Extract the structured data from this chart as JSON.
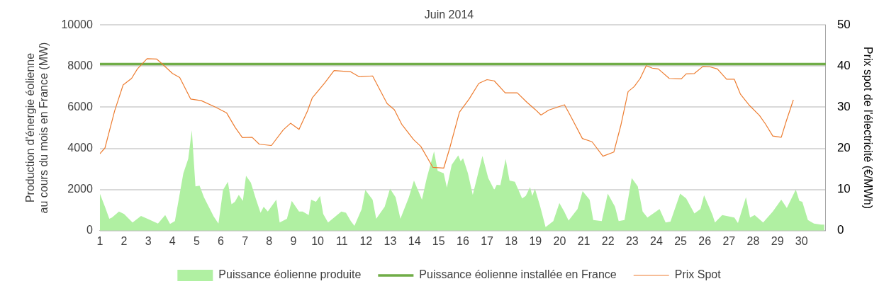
{
  "chart_data": {
    "type": "line",
    "title": "Juin 2014",
    "ylabel": "Production d'énergie éolienne au cours du mois en France (MW)",
    "y2label": "Prix spot de l'électricité (€/MWh)",
    "xlim": [
      1,
      31
    ],
    "xticks": [
      1,
      2,
      3,
      4,
      5,
      6,
      7,
      8,
      9,
      10,
      11,
      12,
      13,
      14,
      15,
      16,
      17,
      18,
      19,
      20,
      21,
      22,
      23,
      24,
      25,
      26,
      27,
      28,
      29,
      30
    ],
    "ylim": [
      0,
      10000
    ],
    "yticks": [
      0,
      2000,
      4000,
      6000,
      8000,
      10000
    ],
    "y2lim": [
      0,
      50
    ],
    "y2ticks": [
      0,
      10,
      20,
      30,
      40,
      50
    ],
    "grid": "y",
    "legend": "bottom",
    "marker": "none",
    "line_style": "solid",
    "series": [
      {
        "name": "Puissance éolienne produite",
        "type": "area",
        "color": "#b0f0a2",
        "x": [
          1.0,
          1.21,
          1.39,
          1.5,
          1.79,
          2.0,
          2.35,
          2.7,
          3.0,
          3.4,
          3.7,
          3.9,
          4.1,
          4.45,
          4.65,
          4.8,
          4.95,
          5.12,
          5.3,
          5.5,
          5.7,
          5.9,
          6.09,
          6.29,
          6.44,
          6.58,
          6.74,
          6.91,
          7.04,
          7.24,
          7.44,
          7.64,
          7.77,
          7.94,
          8.29,
          8.43,
          8.73,
          8.93,
          9.23,
          9.38,
          9.63,
          9.73,
          9.93,
          10.1,
          10.23,
          10.43,
          10.98,
          11.17,
          11.37,
          11.52,
          11.82,
          11.97,
          12.27,
          12.42,
          12.77,
          12.99,
          13.22,
          13.42,
          13.77,
          13.98,
          14.31,
          14.51,
          14.81,
          14.96,
          15.21,
          15.34,
          15.54,
          15.81,
          15.91,
          16.01,
          16.21,
          16.41,
          16.81,
          17.05,
          17.3,
          17.4,
          17.55,
          17.77,
          17.93,
          18.15,
          18.45,
          18.6,
          18.78,
          18.87,
          18.98,
          19.2,
          19.42,
          19.74,
          19.99,
          20.19,
          20.37,
          20.74,
          20.95,
          21.24,
          21.39,
          21.74,
          21.99,
          22.29,
          22.44,
          22.68,
          22.98,
          23.23,
          23.43,
          23.63,
          24.13,
          24.38,
          24.58,
          24.98,
          25.23,
          25.57,
          25.82,
          25.97,
          26.32,
          26.42,
          26.72,
          27.22,
          27.37,
          27.7,
          27.87,
          28.06,
          28.41,
          28.81,
          29.16,
          29.39,
          29.76,
          29.91,
          30.03,
          30.26,
          30.51,
          30.81,
          30.94
        ],
        "values": [
          1800,
          1160,
          580,
          640,
          930,
          810,
          400,
          720,
          560,
          350,
          760,
          330,
          470,
          2790,
          3490,
          4880,
          2150,
          2190,
          1630,
          1160,
          700,
          350,
          1980,
          2380,
          1280,
          1400,
          1740,
          1450,
          2670,
          2330,
          1570,
          870,
          1160,
          930,
          1510,
          400,
          580,
          1450,
          930,
          930,
          760,
          1510,
          1400,
          1690,
          810,
          400,
          930,
          870,
          470,
          230,
          1050,
          1980,
          1510,
          580,
          1160,
          2040,
          1630,
          580,
          1630,
          2440,
          1510,
          2560,
          3860,
          2910,
          2790,
          2090,
          3200,
          3660,
          3370,
          3520,
          2790,
          1740,
          3630,
          2560,
          1980,
          2230,
          2210,
          3490,
          2440,
          2380,
          1570,
          1690,
          2120,
          1690,
          2040,
          1160,
          170,
          470,
          1340,
          930,
          490,
          1050,
          1920,
          1510,
          520,
          470,
          1800,
          1160,
          470,
          520,
          2560,
          2150,
          930,
          640,
          1050,
          400,
          440,
          1800,
          1570,
          840,
          1050,
          1720,
          760,
          400,
          760,
          640,
          370,
          1630,
          640,
          760,
          400,
          930,
          1510,
          1100,
          2000,
          1450,
          1400,
          520,
          350,
          290,
          290
        ]
      },
      {
        "name": "Puissance éolienne installée en France",
        "type": "line",
        "color": "#70ad47",
        "x": [
          1,
          31
        ],
        "values": [
          8100,
          8100
        ]
      },
      {
        "name": "Prix Spot",
        "type": "line",
        "axis": "y2",
        "color": "#ed7d31",
        "x": [
          1.0,
          1.21,
          1.61,
          1.96,
          2.31,
          2.55,
          2.95,
          3.35,
          3.6,
          4.0,
          4.3,
          4.75,
          5.19,
          5.79,
          6.24,
          6.59,
          6.89,
          7.29,
          7.59,
          8.09,
          8.58,
          8.88,
          9.23,
          9.58,
          9.78,
          10.28,
          10.68,
          11.37,
          11.72,
          12.27,
          12.87,
          13.17,
          13.47,
          13.97,
          14.26,
          14.76,
          15.21,
          15.46,
          15.86,
          16.26,
          16.66,
          17.0,
          17.3,
          17.75,
          18.25,
          18.65,
          19.0,
          19.23,
          19.55,
          20.2,
          20.44,
          20.94,
          21.34,
          21.79,
          22.24,
          22.53,
          22.83,
          23.08,
          23.33,
          23.58,
          23.83,
          24.08,
          24.53,
          25.03,
          25.23,
          25.57,
          25.92,
          26.22,
          26.52,
          26.9,
          27.22,
          27.47,
          27.82,
          28.26,
          28.51,
          28.81,
          29.16,
          29.36,
          29.66
        ],
        "values": [
          18.7,
          20.1,
          29.1,
          35.4,
          37.0,
          39.3,
          41.8,
          41.7,
          40.4,
          38.2,
          37.2,
          32.0,
          31.6,
          30.0,
          28.6,
          25.1,
          22.6,
          22.7,
          21.0,
          20.7,
          24.5,
          26.1,
          24.6,
          29.1,
          32.3,
          35.8,
          38.9,
          38.6,
          37.4,
          37.6,
          30.9,
          29.4,
          25.9,
          22.1,
          20.5,
          15.4,
          15.2,
          20.1,
          28.8,
          32.0,
          35.8,
          36.7,
          36.4,
          33.5,
          33.5,
          31.2,
          29.4,
          28.1,
          29.3,
          30.6,
          28.0,
          22.4,
          21.6,
          18.1,
          19.1,
          25.6,
          33.8,
          35.0,
          37.0,
          40.1,
          39.5,
          39.3,
          37.0,
          36.9,
          38.1,
          38.2,
          39.9,
          39.8,
          39.3,
          36.8,
          36.8,
          33.2,
          30.6,
          28.0,
          25.9,
          23.0,
          22.7,
          26.5,
          31.8
        ]
      }
    ]
  }
}
